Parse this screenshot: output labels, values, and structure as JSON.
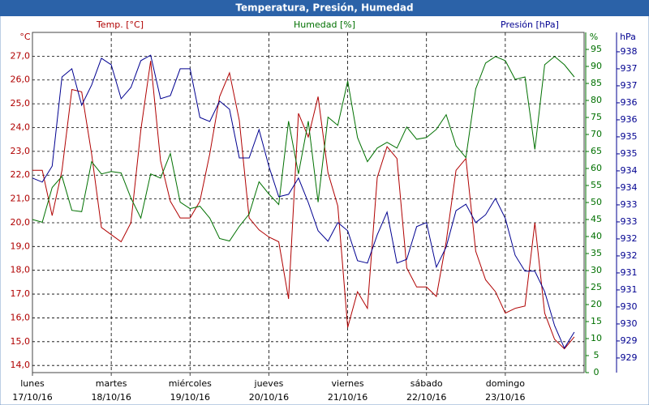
{
  "chart_data": {
    "type": "line",
    "title": "Temperatura, Presión, Humedad",
    "yunit": "°C",
    "y2unit": "%",
    "y3unit": "hPa",
    "grid": true,
    "x": [
      0,
      0.125,
      0.25,
      0.375,
      0.5,
      0.625,
      0.75,
      0.875,
      1,
      1.125,
      1.25,
      1.375,
      1.5,
      1.625,
      1.75,
      1.875,
      2,
      2.125,
      2.25,
      2.375,
      2.5,
      2.625,
      2.75,
      2.875,
      3,
      3.125,
      3.25,
      3.375,
      3.5,
      3.625,
      3.75,
      3.875,
      4,
      4.125,
      4.25,
      4.375,
      4.5,
      4.625,
      4.75,
      4.875,
      5,
      5.125,
      5.25,
      5.375,
      5.5,
      5.625,
      5.75,
      5.875,
      6,
      6.125,
      6.25,
      6.375,
      6.5,
      6.625,
      6.75,
      6.875
    ],
    "xlim": [
      0,
      7
    ],
    "xticks": [
      {
        "value": 0,
        "label": [
          "lunes",
          "17/10/16"
        ]
      },
      {
        "value": 1,
        "label": [
          "martes",
          "18/10/16"
        ]
      },
      {
        "value": 2,
        "label": [
          "miércoles",
          "19/10/16"
        ]
      },
      {
        "value": 3,
        "label": [
          "jueves",
          "20/10/16"
        ]
      },
      {
        "value": 4,
        "label": [
          "viernes",
          "21/10/16"
        ]
      },
      {
        "value": 5,
        "label": [
          "sábado",
          "22/10/16"
        ]
      },
      {
        "value": 6,
        "label": [
          "domingo",
          "23/10/16"
        ]
      }
    ],
    "ylim": [
      13.7,
      28.0
    ],
    "yticks": [
      {
        "value": 14,
        "label": "14,0"
      },
      {
        "value": 15,
        "label": "15,0"
      },
      {
        "value": 16,
        "label": "16,0"
      },
      {
        "value": 17,
        "label": "17,0"
      },
      {
        "value": 18,
        "label": "18,0"
      },
      {
        "value": 19,
        "label": "19,0"
      },
      {
        "value": 20,
        "label": "20,0"
      },
      {
        "value": 21,
        "label": "21,0"
      },
      {
        "value": 22,
        "label": "22,0"
      },
      {
        "value": 23,
        "label": "23,0"
      },
      {
        "value": 24,
        "label": "24,0"
      },
      {
        "value": 25,
        "label": "25,0"
      },
      {
        "value": 26,
        "label": "26,0"
      },
      {
        "value": 27,
        "label": "27,0"
      }
    ],
    "y2lim": [
      0,
      100
    ],
    "y2ticks": [
      0,
      5,
      10,
      15,
      20,
      25,
      30,
      35,
      40,
      45,
      50,
      55,
      60,
      65,
      70,
      75,
      80,
      85,
      90,
      95
    ],
    "y3lim": [
      928.57,
      938.57
    ],
    "y3ticks": [
      {
        "value": 929,
        "label": "929"
      },
      {
        "value": 929.5,
        "label": "929"
      },
      {
        "value": 930,
        "label": "930"
      },
      {
        "value": 930.5,
        "label": "930"
      },
      {
        "value": 931,
        "label": "931"
      },
      {
        "value": 931.5,
        "label": "931"
      },
      {
        "value": 932,
        "label": "932"
      },
      {
        "value": 932.5,
        "label": "932"
      },
      {
        "value": 933,
        "label": "933"
      },
      {
        "value": 933.5,
        "label": "933"
      },
      {
        "value": 934,
        "label": "934"
      },
      {
        "value": 934.5,
        "label": "934"
      },
      {
        "value": 935,
        "label": "935"
      },
      {
        "value": 935.5,
        "label": "935"
      },
      {
        "value": 936,
        "label": "936"
      },
      {
        "value": 936.5,
        "label": "936"
      },
      {
        "value": 937,
        "label": "937"
      },
      {
        "value": 937.5,
        "label": "937"
      },
      {
        "value": 938,
        "label": "938"
      }
    ],
    "series": [
      {
        "name": "Temp. [°C]",
        "color": "#b00000",
        "axis": "y",
        "values": [
          22.2,
          22.2,
          20.3,
          22.2,
          25.6,
          25.5,
          22.9,
          19.8,
          19.5,
          19.2,
          20.0,
          23.9,
          26.8,
          22.6,
          20.9,
          20.2,
          20.2,
          20.9,
          22.9,
          25.3,
          26.3,
          24.3,
          20.2,
          19.7,
          19.4,
          19.2,
          16.8,
          24.6,
          23.6,
          25.3,
          22.1,
          20.7,
          15.6,
          17.1,
          16.4,
          21.9,
          23.2,
          22.7,
          18.1,
          17.3,
          17.3,
          16.9,
          19.2,
          22.2,
          22.7,
          18.8,
          17.6,
          17.1,
          16.2,
          16.4,
          16.5,
          20.0,
          16.2,
          15.1,
          14.7,
          15.2
        ]
      },
      {
        "name": "Humedad [%]",
        "color": "#007000",
        "axis": "y2",
        "values": [
          45.0,
          44.2,
          54.4,
          57.7,
          47.7,
          47.3,
          62.0,
          58.4,
          59.1,
          58.7,
          51.3,
          45.4,
          58.4,
          57.2,
          64.4,
          50.1,
          48.2,
          48.9,
          45.4,
          39.4,
          38.7,
          43.0,
          46.6,
          56.1,
          52.5,
          49.4,
          73.9,
          58.4,
          73.9,
          50.1,
          75.1,
          72.7,
          85.7,
          69.1,
          62.0,
          66.0,
          67.7,
          66.0,
          72.2,
          68.6,
          69.1,
          71.5,
          75.8,
          66.7,
          63.2,
          83.4,
          91.0,
          92.9,
          91.7,
          86.2,
          86.9,
          65.6,
          90.5,
          92.9,
          90.5,
          86.9
        ]
      },
      {
        "name": "Presión [hPa]",
        "color": "#000090",
        "axis": "y3",
        "values": [
          934.29,
          934.17,
          934.64,
          937.26,
          937.5,
          936.43,
          937.02,
          937.81,
          937.62,
          936.62,
          936.95,
          937.74,
          937.9,
          936.62,
          936.71,
          937.5,
          937.5,
          936.07,
          935.95,
          936.55,
          936.31,
          934.88,
          934.88,
          935.71,
          934.64,
          933.74,
          933.81,
          934.29,
          933.57,
          932.74,
          932.43,
          932.98,
          932.74,
          931.86,
          931.79,
          932.62,
          933.29,
          931.79,
          931.9,
          932.86,
          932.98,
          931.67,
          932.26,
          933.33,
          933.52,
          932.98,
          933.21,
          933.69,
          933.1,
          932.02,
          931.55,
          931.55,
          930.95,
          929.95,
          929.29,
          929.76
        ]
      }
    ]
  }
}
